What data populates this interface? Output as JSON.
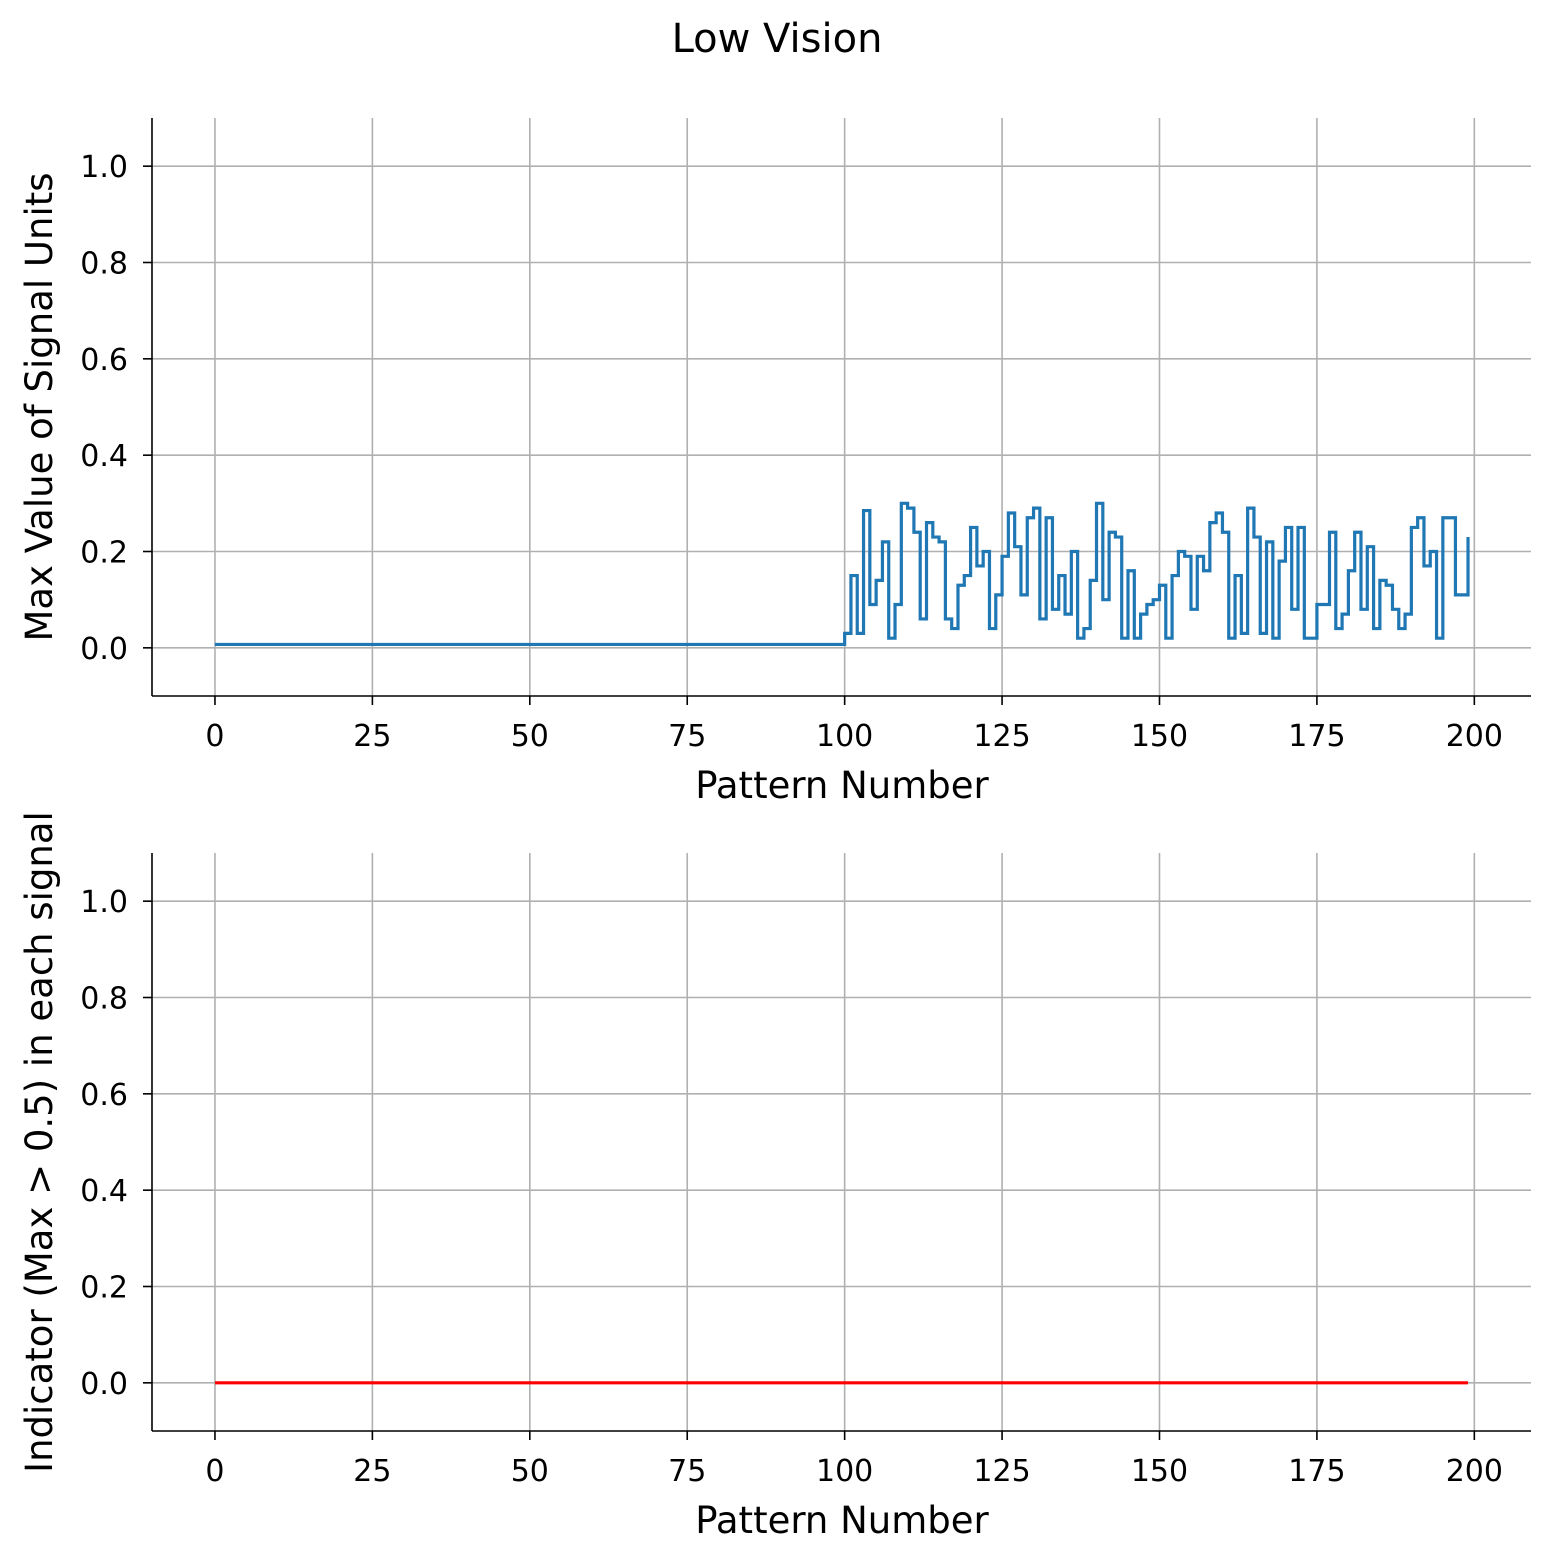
{
  "figure": {
    "title": "Low Vision"
  },
  "chart_data": [
    {
      "type": "line",
      "style": "step",
      "title": "",
      "xlabel": "Pattern Number",
      "ylabel": "Max Value of Signal Units",
      "xlim": [
        -10,
        209
      ],
      "ylim": [
        -0.1,
        1.1
      ],
      "xticks": [
        0,
        25,
        50,
        75,
        100,
        125,
        150,
        175,
        200
      ],
      "yticks": [
        0.0,
        0.2,
        0.4,
        0.6,
        0.8,
        1.0
      ],
      "xtick_labels": [
        "0",
        "25",
        "50",
        "75",
        "100",
        "125",
        "150",
        "175",
        "200"
      ],
      "ytick_labels": [
        "0.0",
        "0.2",
        "0.4",
        "0.6",
        "0.8",
        "1.0"
      ],
      "grid": true,
      "color": "#1f77b4",
      "series": [
        {
          "x_start": 0,
          "x_step": 1,
          "values": [
            0.007,
            0.007,
            0.007,
            0.007,
            0.007,
            0.007,
            0.007,
            0.007,
            0.007,
            0.007,
            0.007,
            0.007,
            0.007,
            0.007,
            0.007,
            0.007,
            0.007,
            0.007,
            0.007,
            0.007,
            0.007,
            0.007,
            0.007,
            0.007,
            0.007,
            0.007,
            0.007,
            0.007,
            0.007,
            0.007,
            0.007,
            0.007,
            0.007,
            0.007,
            0.007,
            0.007,
            0.007,
            0.007,
            0.007,
            0.007,
            0.007,
            0.007,
            0.007,
            0.007,
            0.007,
            0.007,
            0.007,
            0.007,
            0.007,
            0.007,
            0.007,
            0.007,
            0.007,
            0.007,
            0.007,
            0.007,
            0.007,
            0.007,
            0.007,
            0.007,
            0.007,
            0.007,
            0.007,
            0.007,
            0.007,
            0.007,
            0.007,
            0.007,
            0.007,
            0.007,
            0.007,
            0.007,
            0.007,
            0.007,
            0.007,
            0.007,
            0.007,
            0.007,
            0.007,
            0.007,
            0.007,
            0.007,
            0.007,
            0.007,
            0.007,
            0.007,
            0.007,
            0.007,
            0.007,
            0.007,
            0.007,
            0.007,
            0.007,
            0.007,
            0.007,
            0.007,
            0.007,
            0.007,
            0.007,
            0.007,
            0.03,
            0.15,
            0.03,
            0.285,
            0.09,
            0.14,
            0.22,
            0.02,
            0.09,
            0.3,
            0.29,
            0.24,
            0.06,
            0.26,
            0.23,
            0.22,
            0.06,
            0.04,
            0.13,
            0.15,
            0.25,
            0.17,
            0.2,
            0.04,
            0.11,
            0.19,
            0.28,
            0.21,
            0.11,
            0.27,
            0.29,
            0.06,
            0.27,
            0.08,
            0.15,
            0.07,
            0.2,
            0.02,
            0.04,
            0.14,
            0.3,
            0.1,
            0.24,
            0.23,
            0.02,
            0.16,
            0.02,
            0.07,
            0.09,
            0.1,
            0.13,
            0.02,
            0.15,
            0.2,
            0.19,
            0.08,
            0.19,
            0.16,
            0.26,
            0.28,
            0.24,
            0.02,
            0.15,
            0.03,
            0.29,
            0.23,
            0.03,
            0.22,
            0.02,
            0.18,
            0.25,
            0.08,
            0.25,
            0.02,
            0.02,
            0.09,
            0.09,
            0.24,
            0.04,
            0.07,
            0.16,
            0.24,
            0.08,
            0.21,
            0.04,
            0.14,
            0.13,
            0.08,
            0.04,
            0.07,
            0.25,
            0.27,
            0.17,
            0.2,
            0.02,
            0.27,
            0.27,
            0.11,
            0.11,
            0.23
          ]
        }
      ]
    },
    {
      "type": "line",
      "title": "",
      "xlabel": "Pattern Number",
      "ylabel": "Indicator (Max > 0.5) in each signal",
      "xlim": [
        -10,
        209
      ],
      "ylim": [
        -0.1,
        1.1
      ],
      "xticks": [
        0,
        25,
        50,
        75,
        100,
        125,
        150,
        175,
        200
      ],
      "yticks": [
        0.0,
        0.2,
        0.4,
        0.6,
        0.8,
        1.0
      ],
      "xtick_labels": [
        "0",
        "25",
        "50",
        "75",
        "100",
        "125",
        "150",
        "175",
        "200"
      ],
      "ytick_labels": [
        "0.0",
        "0.2",
        "0.4",
        "0.6",
        "0.8",
        "1.0"
      ],
      "grid": true,
      "color": "#ff0000",
      "series": [
        {
          "x": [
            0,
            199
          ],
          "values": [
            0,
            0
          ]
        }
      ]
    }
  ]
}
